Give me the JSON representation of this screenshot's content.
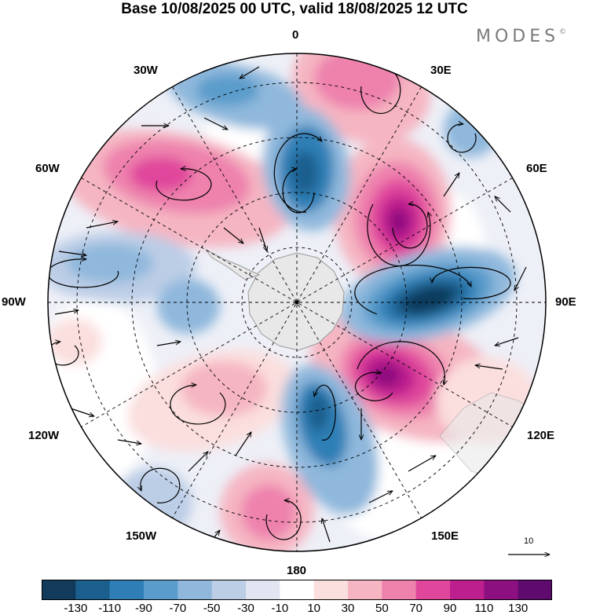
{
  "title": "Base 10/08/2025 00 UTC, valid 18/08/2025 12 UTC",
  "brand": {
    "name": "MODES",
    "mark": "©"
  },
  "longitude_labels": {
    "lon_0": "0",
    "lon_30e": "30E",
    "lon_60e": "60E",
    "lon_90e": "90E",
    "lon_120e": "120E",
    "lon_150e": "150E",
    "lon_180": "180",
    "lon_150w": "150W",
    "lon_120w": "120W",
    "lon_90w": "90W",
    "lon_60w": "60W",
    "lon_30w": "30W"
  },
  "reference_vector": {
    "label": "10"
  },
  "colorbar": {
    "ticks": [
      "-130",
      "-110",
      "-90",
      "-70",
      "-50",
      "-30",
      "-10",
      "10",
      "30",
      "50",
      "70",
      "90",
      "110",
      "130"
    ],
    "colors": [
      "#113a5b",
      "#1a5f8e",
      "#2f7fb6",
      "#5a9ccb",
      "#8fb8dc",
      "#bccde6",
      "#e1e4f1",
      "#ffffff",
      "#fbdede",
      "#f5b5c2",
      "#ee82ad",
      "#e0479c",
      "#bd1f8e",
      "#8c107f",
      "#5e0a6e"
    ]
  },
  "colors": {
    "land": "#e8e8e8",
    "coast": "#9a9a9a",
    "grid": "#000000"
  }
}
